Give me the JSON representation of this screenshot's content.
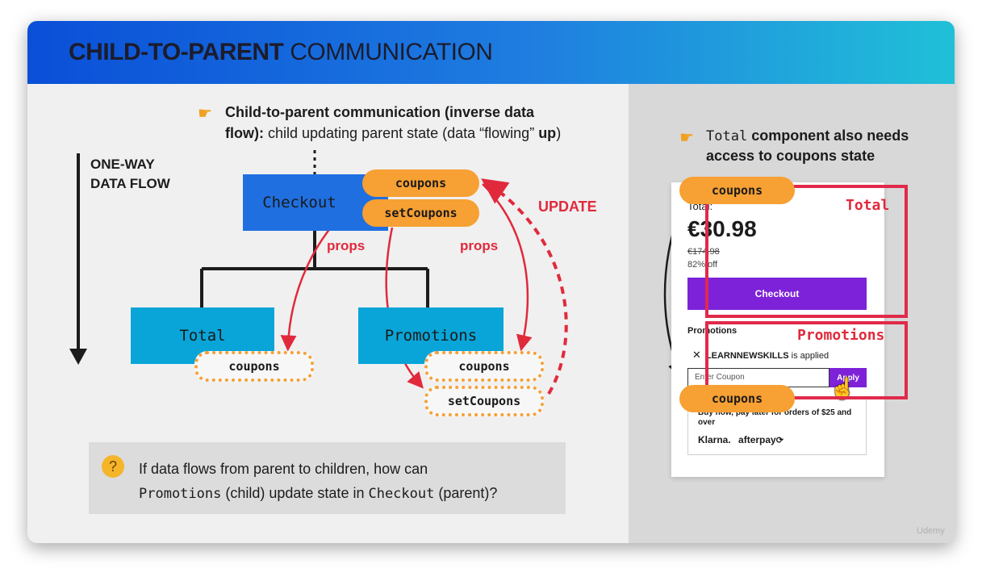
{
  "header": {
    "title_bold": "CHILD-TO-PARENT",
    "title_rest": "COMMUNICATION"
  },
  "left": {
    "point_line1": "Child-to-parent communication (inverse data",
    "point_line2_bold": "flow):",
    "point_line2_mid": " child updating parent state (data “flowing” ",
    "point_line2_up": "up",
    "point_line2_end": ")",
    "flow_label_line1": "ONE-WAY",
    "flow_label_line2": "DATA FLOW",
    "checkout": "Checkout",
    "total": "Total",
    "promotions": "Promotions",
    "coupons": "coupons",
    "setCoupons": "setCoupons",
    "props_left": "props",
    "props_right": "props",
    "update": "UPDATE",
    "question_line1": "If data flows from parent to children, how can",
    "question_promotions": "Promotions",
    "question_mid": " (child) update state in ",
    "question_checkout": "Checkout",
    "question_end": " (parent)?"
  },
  "right": {
    "note_code": "Total",
    "note_line1": " component also needs",
    "note_line2": "access to coupons state",
    "pill_top": "coupons",
    "pill_bottom": "coupons",
    "total_tag": "Total",
    "promotions_tag": "Promotions",
    "card": {
      "total_label": "Total:",
      "price": "€30.98",
      "old_price": "€174.98",
      "discount": "82% off",
      "checkout_button": "Checkout",
      "promotions_heading": "Promotions",
      "applied_code": "LEARNNEWSKILLS",
      "applied_suffix": " is applied",
      "coupon_placeholder": "Enter Coupon",
      "apply_button": "Apply",
      "pay_later": "Buy now, pay later for orders of $25 and over",
      "klarna": "Klarna.",
      "afterpay": "afterpay"
    }
  },
  "watermark": "Udemy",
  "colors": {
    "header_start": "#0a4fd8",
    "header_end": "#20c0d8",
    "checkout_box": "#1f6fe0",
    "child_box": "#0aa5d8",
    "pill": "#f7a033",
    "red": "#e02a3c",
    "purple": "#7d22d9"
  }
}
